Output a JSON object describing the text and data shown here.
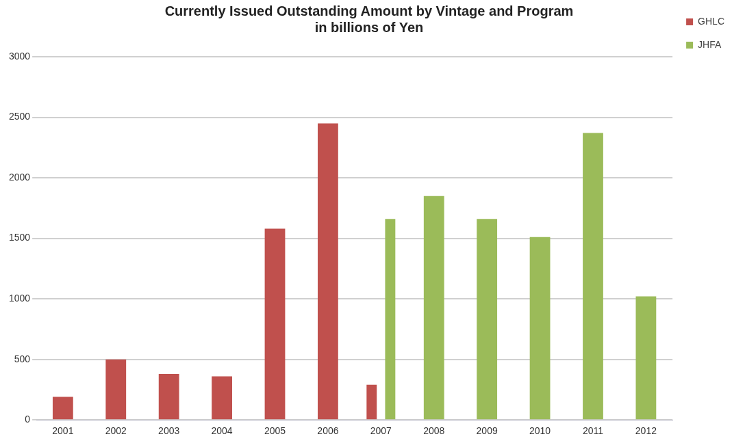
{
  "chart_data": {
    "type": "bar",
    "title": "Currently Issued Outstanding Amount by Vintage and Program",
    "subtitle": "in billions of Yen",
    "categories": [
      "2001",
      "2002",
      "2003",
      "2004",
      "2005",
      "2006",
      "2007",
      "2008",
      "2009",
      "2010",
      "2011",
      "2012"
    ],
    "series": [
      {
        "name": "GHLC",
        "color": "#c0504d",
        "values": [
          190,
          500,
          380,
          360,
          1580,
          2450,
          290,
          null,
          null,
          null,
          null,
          null
        ]
      },
      {
        "name": "JHFA",
        "color": "#9bbb59",
        "values": [
          null,
          null,
          null,
          null,
          null,
          null,
          1660,
          1850,
          1660,
          1510,
          2370,
          1020
        ]
      }
    ],
    "ylim": [
      0,
      3000
    ],
    "yticks": [
      0,
      500,
      1000,
      1500,
      2000,
      2500,
      3000
    ],
    "grid": "y",
    "legend": "right"
  }
}
